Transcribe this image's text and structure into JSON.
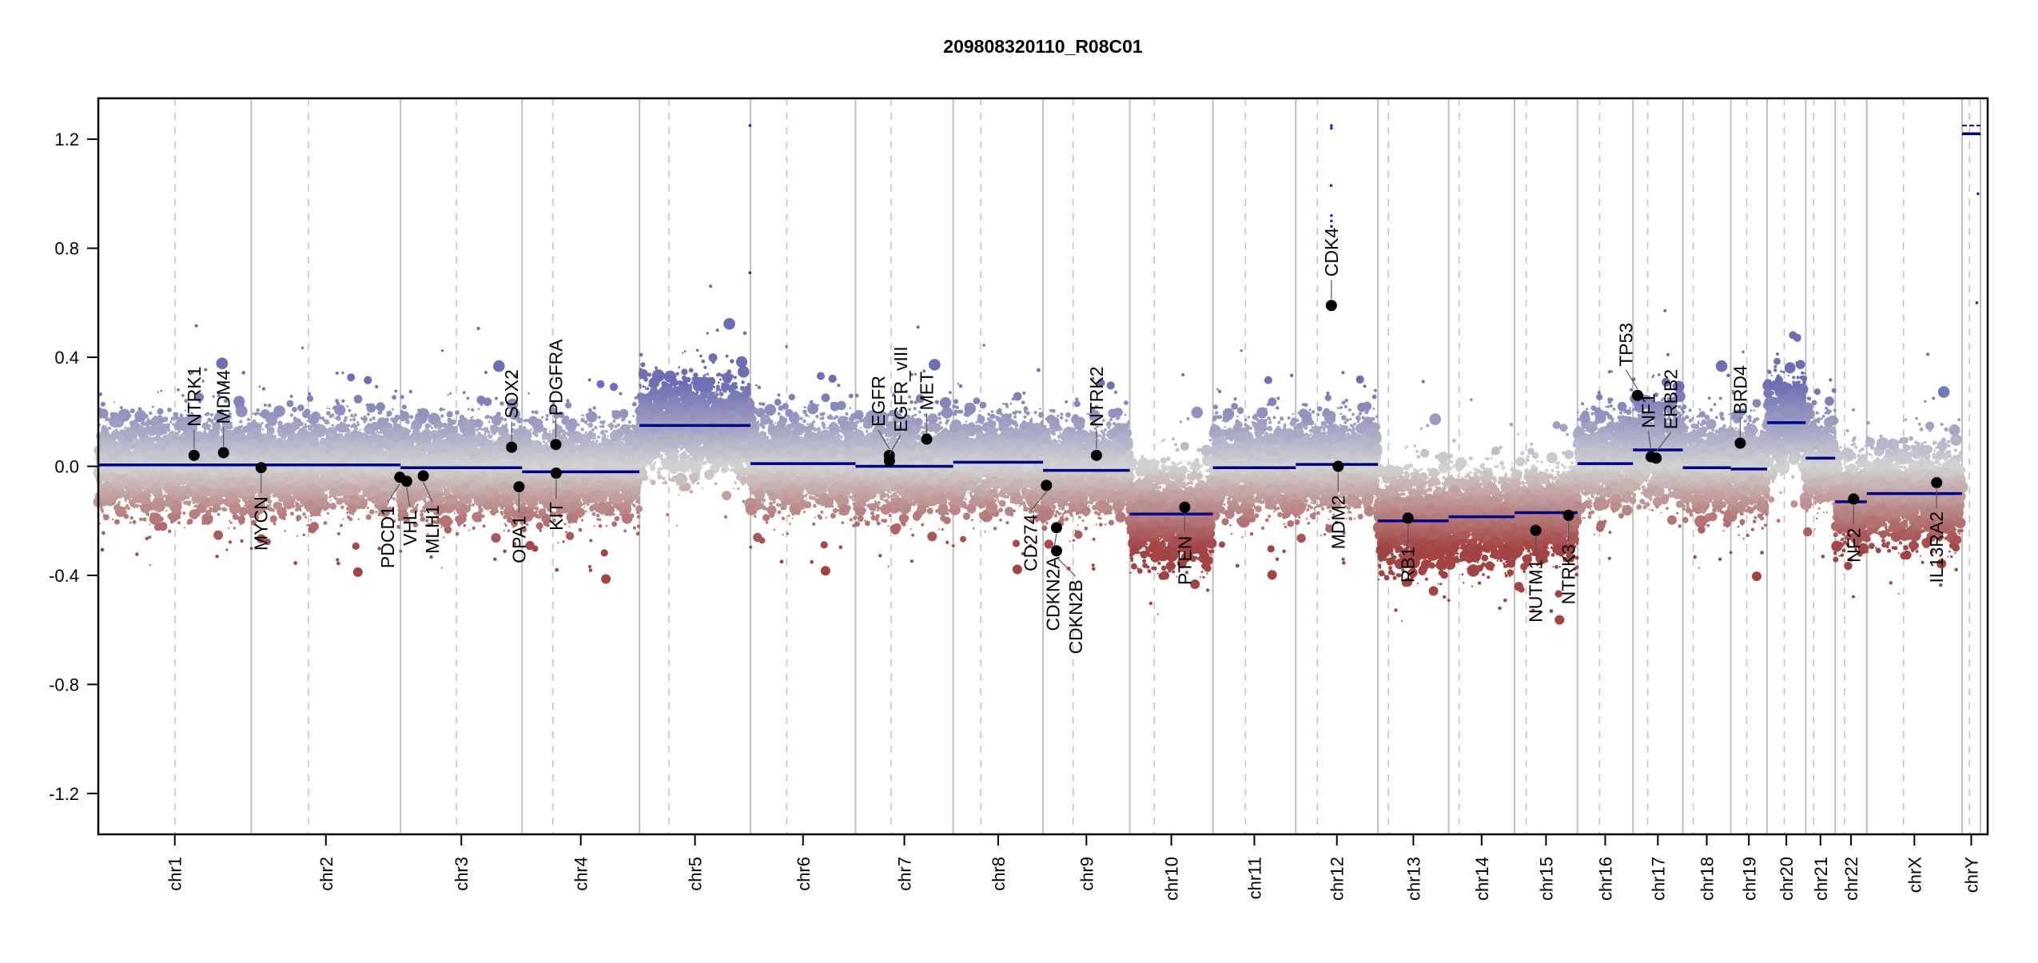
{
  "chart_data": {
    "type": "scatter",
    "title": "209808320110_R08C01",
    "xlabel": "",
    "ylabel": "",
    "ylim": [
      -1.35,
      1.35
    ],
    "yticks": [
      "-1.2",
      "-0.8",
      "-0.4",
      "0.0",
      "0.4",
      "0.8",
      "1.2"
    ],
    "grid": false,
    "colors": {
      "gain": "#6e6eb4",
      "neutral": "#d3d3d3",
      "loss": "#a34444",
      "segment": "#00008b",
      "gene": "#000000"
    },
    "chromosomes": [
      {
        "name": "chr1",
        "length_mb": 249.2,
        "centromere_mb": 125,
        "segment": 0.005
      },
      {
        "name": "chr2",
        "length_mb": 243.2,
        "centromere_mb": 93,
        "segment": 0.005
      },
      {
        "name": "chr3",
        "length_mb": 198.0,
        "centromere_mb": 91,
        "segment": -0.005
      },
      {
        "name": "chr4",
        "length_mb": 191.2,
        "centromere_mb": 50,
        "segment": -0.02
      },
      {
        "name": "chr5",
        "length_mb": 180.9,
        "centromere_mb": 48,
        "segment": 0.15
      },
      {
        "name": "chr6",
        "length_mb": 171.1,
        "centromere_mb": 59,
        "segment": 0.01
      },
      {
        "name": "chr7",
        "length_mb": 159.1,
        "centromere_mb": 58,
        "segment": 0.0
      },
      {
        "name": "chr8",
        "length_mb": 146.4,
        "centromere_mb": 45,
        "segment": 0.015
      },
      {
        "name": "chr9",
        "length_mb": 141.2,
        "centromere_mb": 49,
        "segment": -0.015
      },
      {
        "name": "chr10",
        "length_mb": 135.5,
        "centromere_mb": 40,
        "segment": -0.175
      },
      {
        "name": "chr11",
        "length_mb": 135.0,
        "centromere_mb": 53,
        "segment": -0.005
      },
      {
        "name": "chr12",
        "length_mb": 133.9,
        "centromere_mb": 35,
        "segment": 0.007
      },
      {
        "name": "chr13",
        "length_mb": 115.2,
        "centromere_mb": 17,
        "segment": -0.2
      },
      {
        "name": "chr14",
        "length_mb": 107.3,
        "centromere_mb": 17,
        "segment": -0.185
      },
      {
        "name": "chr15",
        "length_mb": 102.5,
        "centromere_mb": 19,
        "segment": -0.17
      },
      {
        "name": "chr16",
        "length_mb": 90.4,
        "centromere_mb": 36,
        "segment": 0.01
      },
      {
        "name": "chr17",
        "length_mb": 81.2,
        "centromere_mb": 24,
        "segment": 0.06
      },
      {
        "name": "chr18",
        "length_mb": 78.1,
        "centromere_mb": 17,
        "segment": -0.005
      },
      {
        "name": "chr19",
        "length_mb": 59.1,
        "centromere_mb": 26,
        "segment": -0.01
      },
      {
        "name": "chr20",
        "length_mb": 63.0,
        "centromere_mb": 28,
        "segment": 0.16
      },
      {
        "name": "chr21",
        "length_mb": 48.1,
        "centromere_mb": 13,
        "segment": 0.03
      },
      {
        "name": "chr22",
        "length_mb": 51.3,
        "centromere_mb": 15,
        "segment": -0.13
      },
      {
        "name": "chrX",
        "length_mb": 155.3,
        "centromere_mb": 60,
        "segment": -0.1
      },
      {
        "name": "chrY",
        "length_mb": 30.0,
        "centromere_mb": 12,
        "segment": 1.22
      }
    ],
    "genes": [
      {
        "name": "NTRK1",
        "chr": "chr1",
        "pos_mb": 156,
        "value": 0.04
      },
      {
        "name": "MDM4",
        "chr": "chr1",
        "pos_mb": 204,
        "value": 0.05
      },
      {
        "name": "MYCN",
        "chr": "chr2",
        "pos_mb": 16,
        "value": -0.005
      },
      {
        "name": "PDCD1",
        "chr": "chr2",
        "pos_mb": 242,
        "value": -0.04
      },
      {
        "name": "VHL",
        "chr": "chr3",
        "pos_mb": 10,
        "value": -0.055
      },
      {
        "name": "MLH1",
        "chr": "chr3",
        "pos_mb": 37,
        "value": -0.035
      },
      {
        "name": "SOX2",
        "chr": "chr3",
        "pos_mb": 181,
        "value": 0.07
      },
      {
        "name": "OPA1",
        "chr": "chr3",
        "pos_mb": 193,
        "value": -0.075
      },
      {
        "name": "PDGFRA",
        "chr": "chr4",
        "pos_mb": 55,
        "value": 0.08
      },
      {
        "name": "KIT",
        "chr": "chr4",
        "pos_mb": 55.5,
        "value": -0.025
      },
      {
        "name": "EGFR",
        "chr": "chr7",
        "pos_mb": 55,
        "value": 0.04
      },
      {
        "name": "EGFR_vIII",
        "chr": "chr7",
        "pos_mb": 55.2,
        "value": 0.02
      },
      {
        "name": "MET",
        "chr": "chr7",
        "pos_mb": 116,
        "value": 0.1
      },
      {
        "name": "CD274",
        "chr": "chr9",
        "pos_mb": 5.5,
        "value": -0.07
      },
      {
        "name": "CDKN2A",
        "chr": "chr9",
        "pos_mb": 21.9,
        "value": -0.225
      },
      {
        "name": "CDKN2B",
        "chr": "chr9",
        "pos_mb": 22.0,
        "value": -0.31
      },
      {
        "name": "NTRK2",
        "chr": "chr9",
        "pos_mb": 87,
        "value": 0.04
      },
      {
        "name": "PTEN",
        "chr": "chr10",
        "pos_mb": 89.6,
        "value": -0.15
      },
      {
        "name": "CDK4",
        "chr": "chr12",
        "pos_mb": 58,
        "value": 0.59
      },
      {
        "name": "MDM2",
        "chr": "chr12",
        "pos_mb": 69,
        "value": 0.0
      },
      {
        "name": "RB1",
        "chr": "chr13",
        "pos_mb": 48.9,
        "value": -0.19
      },
      {
        "name": "NUTM1",
        "chr": "chr15",
        "pos_mb": 34.6,
        "value": -0.235
      },
      {
        "name": "NTRK3",
        "chr": "chr15",
        "pos_mb": 88,
        "value": -0.18
      },
      {
        "name": "TP53",
        "chr": "chr17",
        "pos_mb": 7.5,
        "value": 0.26
      },
      {
        "name": "NF1",
        "chr": "chr17",
        "pos_mb": 29.5,
        "value": 0.035
      },
      {
        "name": "ERBB2",
        "chr": "chr17",
        "pos_mb": 37.8,
        "value": 0.03
      },
      {
        "name": "BRD4",
        "chr": "chr19",
        "pos_mb": 15.4,
        "value": 0.085
      },
      {
        "name": "NF2",
        "chr": "chr22",
        "pos_mb": 30,
        "value": -0.12
      },
      {
        "name": "IL13RA2",
        "chr": "chrX",
        "pos_mb": 114,
        "value": -0.06
      }
    ]
  }
}
